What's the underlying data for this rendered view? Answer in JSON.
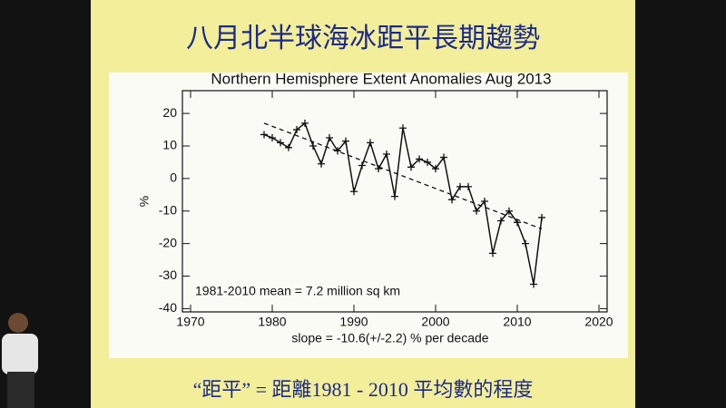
{
  "slide_title": "八月北半球海冰距平長期趨勢",
  "footer": "“距平”  = 距離1981 - 2010 平均數的程度",
  "chart_data": {
    "type": "line",
    "title": "Northern Hemisphere Extent Anomalies Aug 2013",
    "ylabel": "%",
    "xlabel": "slope = -10.6(+/-2.2) % per decade",
    "annotation": "1981-2010 mean =   7.2 million sq km",
    "x": [
      1979,
      1980,
      1981,
      1982,
      1983,
      1984,
      1985,
      1986,
      1987,
      1988,
      1989,
      1990,
      1991,
      1992,
      1993,
      1994,
      1995,
      1996,
      1997,
      1998,
      1999,
      2000,
      2001,
      2002,
      2003,
      2004,
      2005,
      2006,
      2007,
      2008,
      2009,
      2010,
      2011,
      2012,
      2013
    ],
    "series": [
      {
        "name": "Anomaly",
        "color": "#111111",
        "values": [
          13.5,
          12.5,
          11,
          9.5,
          15,
          17,
          10,
          4.5,
          12.5,
          8.5,
          11.5,
          -4,
          4,
          11,
          3,
          7.5,
          -5.5,
          15.5,
          3.5,
          6,
          5,
          3,
          6.5,
          -6.5,
          -2.5,
          -2.5,
          -10,
          -7,
          -23,
          -13,
          -10,
          -13.5,
          -20,
          -32.5,
          -12
        ]
      }
    ],
    "trend": {
      "x": [
        1979,
        2013
      ],
      "values": [
        17,
        -15.5
      ]
    },
    "xlim": [
      1969,
      2021
    ],
    "ylim": [
      -41,
      27
    ],
    "xticks": [
      1970,
      1980,
      1990,
      2000,
      2010,
      2020
    ],
    "yticks": [
      -40,
      -30,
      -20,
      -10,
      0,
      10,
      20
    ]
  }
}
